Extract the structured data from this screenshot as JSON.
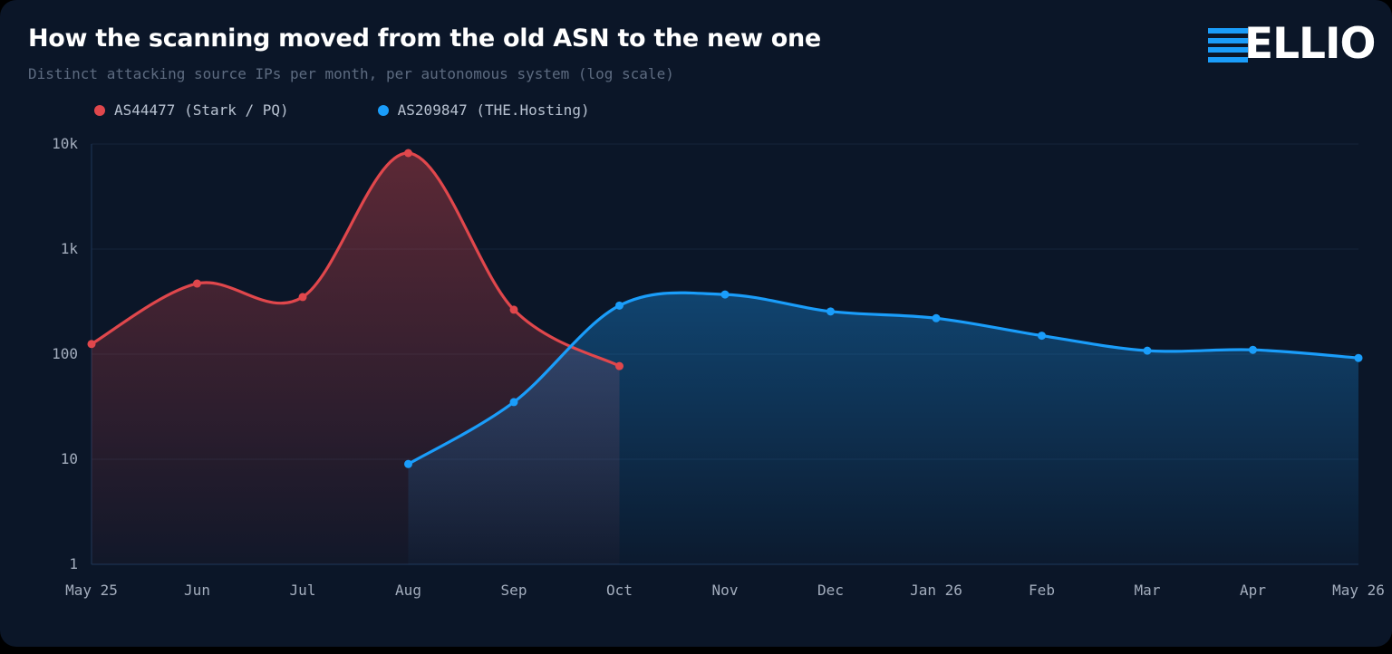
{
  "header": {
    "title": "How the scanning moved from the old ASN to the new one",
    "subtitle": "Distinct attacking source IPs per month, per autonomous system (log scale)"
  },
  "logo": {
    "text": "ELLIO",
    "color": "#1a9dfa"
  },
  "chart_data": {
    "type": "area",
    "title": "How the scanning moved from the old ASN to the new one",
    "subtitle": "Distinct attacking source IPs per month, per autonomous system (log scale)",
    "xlabel": "",
    "ylabel": "",
    "y_scale": "log",
    "ylim": [
      1,
      10000
    ],
    "y_ticks": [
      1,
      10,
      100,
      1000,
      10000
    ],
    "y_tick_labels": [
      "1",
      "10",
      "100",
      "1k",
      "10k"
    ],
    "categories": [
      "May 25",
      "Jun",
      "Jul",
      "Aug",
      "Sep",
      "Oct",
      "Nov",
      "Dec",
      "Jan 26",
      "Feb",
      "Mar",
      "Apr",
      "May 26"
    ],
    "grid": true,
    "legend": "top-left",
    "series": [
      {
        "name": "AS44477 (Stark / PQ)",
        "color": "#e0474c",
        "values": [
          125,
          470,
          350,
          8200,
          265,
          77,
          null,
          null,
          null,
          null,
          null,
          null,
          null
        ]
      },
      {
        "name": "AS209847 (THE.Hosting)",
        "color": "#1a9dfa",
        "values": [
          null,
          null,
          null,
          9,
          35,
          290,
          370,
          255,
          220,
          150,
          108,
          110,
          92
        ]
      }
    ]
  }
}
